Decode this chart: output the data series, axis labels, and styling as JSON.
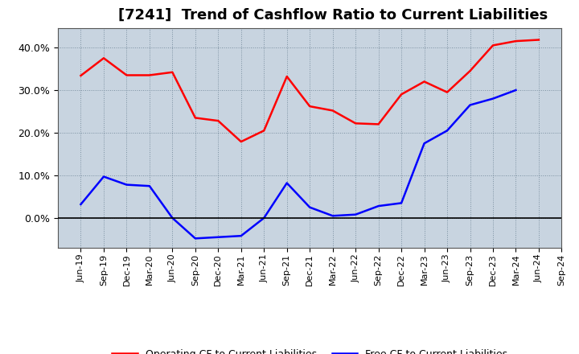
{
  "title": "[7241]  Trend of Cashflow Ratio to Current Liabilities",
  "x_labels": [
    "Jun-19",
    "Sep-19",
    "Dec-19",
    "Mar-20",
    "Jun-20",
    "Sep-20",
    "Dec-20",
    "Mar-21",
    "Jun-21",
    "Sep-21",
    "Dec-21",
    "Mar-22",
    "Jun-22",
    "Sep-22",
    "Dec-22",
    "Mar-23",
    "Jun-23",
    "Sep-23",
    "Dec-23",
    "Mar-24",
    "Jun-24",
    "Sep-24"
  ],
  "operating_cf": [
    0.334,
    0.375,
    0.335,
    0.335,
    0.342,
    0.235,
    0.228,
    0.179,
    0.205,
    0.332,
    0.262,
    0.252,
    0.222,
    0.22,
    0.29,
    0.32,
    0.295,
    0.345,
    0.405,
    0.415,
    0.418,
    null
  ],
  "free_cf": [
    0.032,
    0.097,
    0.078,
    0.075,
    0.0,
    -0.048,
    -0.045,
    -0.042,
    0.0,
    0.082,
    0.025,
    0.005,
    0.008,
    0.028,
    0.035,
    0.175,
    0.205,
    0.265,
    0.28,
    0.3,
    null,
    null
  ],
  "operating_color": "#FF0000",
  "free_color": "#0000FF",
  "ylim_lo": -0.07,
  "ylim_hi": 0.445,
  "yticks": [
    0.0,
    0.1,
    0.2,
    0.3,
    0.4
  ],
  "plot_bg_color": "#C8D4E0",
  "fig_bg_color": "#FFFFFF",
  "grid_color": "#7A8FA0",
  "zero_line_color": "#000000",
  "title_fontsize": 13,
  "tick_fontsize": 8,
  "legend_fontsize": 9
}
